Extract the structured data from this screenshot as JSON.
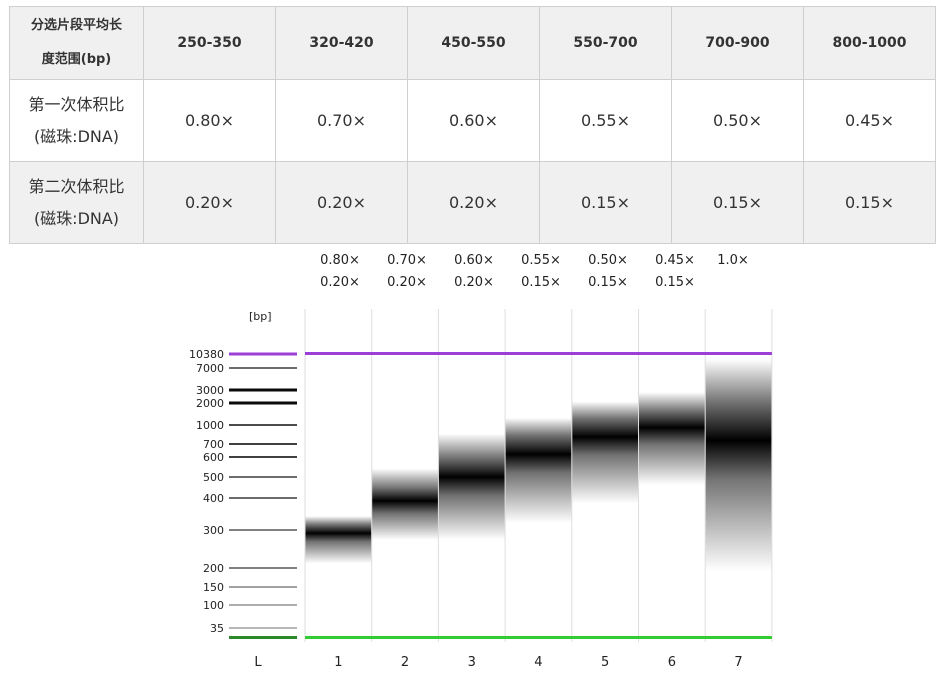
{
  "table": {
    "header_label": [
      "分选片段平均长",
      "度范围(bp)"
    ],
    "size_ranges": [
      "250-350",
      "320-420",
      "450-550",
      "550-700",
      "700-900",
      "800-1000"
    ],
    "rows": [
      {
        "label": [
          "第一次体积比",
          "(磁珠:DNA)"
        ],
        "values": [
          "0.80×",
          "0.70×",
          "0.60×",
          "0.55×",
          "0.50×",
          "0.45×"
        ]
      },
      {
        "label": [
          "第二次体积比",
          "(磁珠:DNA)"
        ],
        "values": [
          "0.20×",
          "0.20×",
          "0.20×",
          "0.15×",
          "0.15×",
          "0.15×"
        ]
      }
    ]
  },
  "lane_ratios": [
    {
      "first": "0.80×",
      "second": "0.20×"
    },
    {
      "first": "0.70×",
      "second": "0.20×"
    },
    {
      "first": "0.60×",
      "second": "0.20×"
    },
    {
      "first": "0.55×",
      "second": "0.15×"
    },
    {
      "first": "0.50×",
      "second": "0.15×"
    },
    {
      "first": "0.45×",
      "second": "0.15×"
    },
    {
      "first": "1.0×",
      "second": ""
    }
  ],
  "gel": {
    "unit_label": "[bp]",
    "ladder_bands": [
      {
        "label": "10380",
        "intensity": 0.9,
        "color": "#9b3fd6"
      },
      {
        "label": "7000",
        "intensity": 0.55
      },
      {
        "label": "3000",
        "intensity": 1.0
      },
      {
        "label": "2000",
        "intensity": 1.0
      },
      {
        "label": "1000",
        "intensity": 0.7
      },
      {
        "label": "700",
        "intensity": 0.75
      },
      {
        "label": "600",
        "intensity": 0.75
      },
      {
        "label": "500",
        "intensity": 0.55
      },
      {
        "label": "400",
        "intensity": 0.55
      },
      {
        "label": "300",
        "intensity": 0.45
      },
      {
        "label": "200",
        "intensity": 0.45
      },
      {
        "label": "150",
        "intensity": 0.3
      },
      {
        "label": "100",
        "intensity": 0.25
      },
      {
        "label": "35",
        "intensity": 0.2
      }
    ],
    "lane_labels": [
      "L",
      "1",
      "2",
      "3",
      "4",
      "5",
      "6",
      "7"
    ],
    "upper_marker_color": "#9b3fd6",
    "lower_marker_color": "#33cc33",
    "sample_smears": [
      {
        "lane": "1",
        "low_bp": 210,
        "peak_bp": 290,
        "high_bp": 340
      },
      {
        "lane": "2",
        "low_bp": 270,
        "peak_bp": 390,
        "high_bp": 540
      },
      {
        "lane": "3",
        "low_bp": 270,
        "peak_bp": 500,
        "high_bp": 850
      },
      {
        "lane": "4",
        "low_bp": 320,
        "peak_bp": 620,
        "high_bp": 1250
      },
      {
        "lane": "5",
        "low_bp": 380,
        "peak_bp": 800,
        "high_bp": 2100
      },
      {
        "lane": "6",
        "low_bp": 460,
        "peak_bp": 950,
        "high_bp": 2800
      },
      {
        "lane": "7",
        "low_bp": 190,
        "peak_bp": 750,
        "high_bp": 9000
      }
    ]
  }
}
